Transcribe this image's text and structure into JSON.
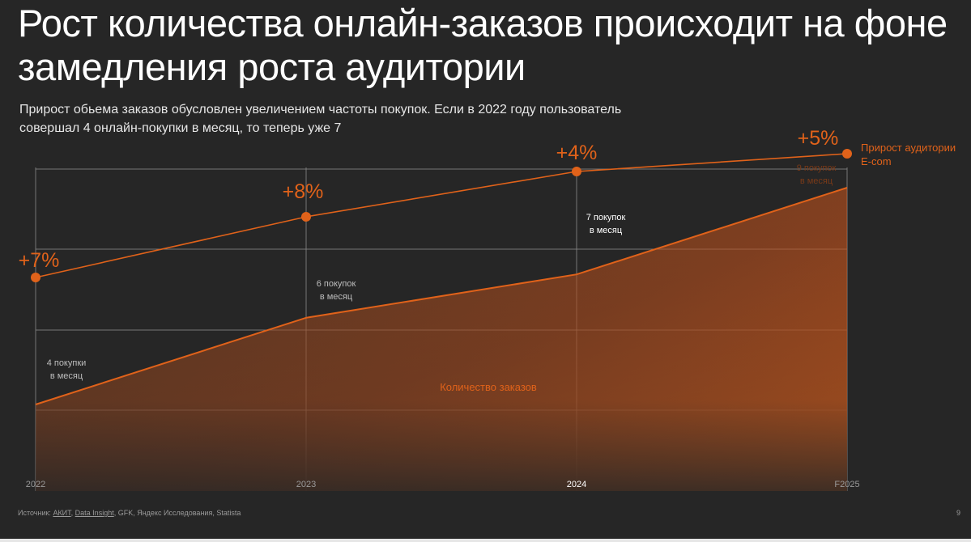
{
  "title": "Рост количества онлайн-заказов происходит на фоне замедления роста аудитории",
  "subtitle": "Прирост обьема заказов обусловлен увеличением частоты покупок. Если в 2022 году пользователь совершал 4 онлайн-покупки в месяц, то теперь уже 7",
  "footer": {
    "prefix": "Источник: ",
    "source1": "АКИТ",
    "sep": ", ",
    "source2": "Data Insight",
    "rest": ", GFK, Яндекс Исследования, Statista"
  },
  "page_number": "9",
  "colors": {
    "background": "#262626",
    "accent": "#e0621a",
    "grid": "#8a8a8a",
    "label_dim": "#bdbdbd"
  },
  "chart_data": {
    "type": "line",
    "categories": [
      "2022",
      "2023",
      "2024",
      "F2025"
    ],
    "series": [
      {
        "name": "Прирост аудитории E-com",
        "kind": "line-markers",
        "point_labels": [
          "+7%",
          "+8%",
          "+4%",
          "+5%"
        ],
        "values": [
          7,
          8,
          4,
          5
        ]
      },
      {
        "name": "Количество заказов",
        "kind": "area",
        "point_labels": [
          "4 покупки в месяц",
          "6 покупок в месяц",
          "7 покупок в месяц",
          "9 покупок в месяц"
        ],
        "values": [
          4,
          6,
          7,
          9
        ]
      }
    ],
    "legend_line": [
      "Прирост аудитории",
      "E-com"
    ],
    "area_label": "Количество заказов",
    "grid": true
  }
}
